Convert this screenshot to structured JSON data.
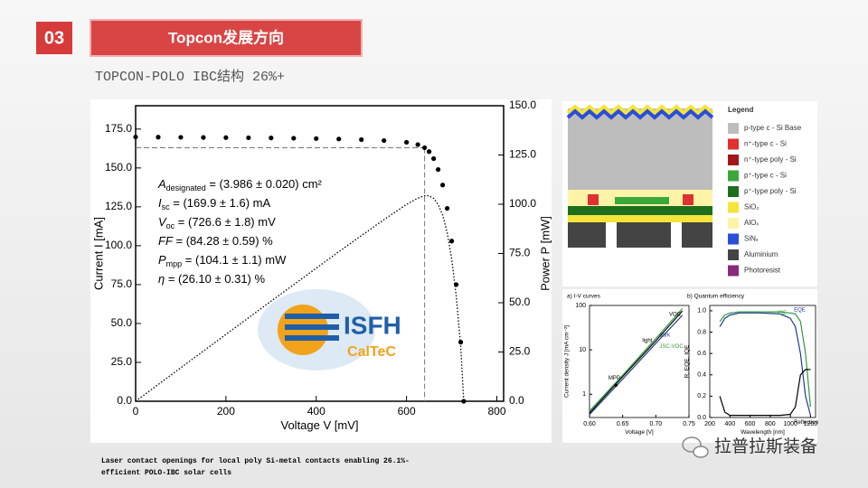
{
  "header": {
    "number": "03",
    "title": "Topcon发展方向",
    "subtitle": "TOPCON-POLO IBC结构 26%+"
  },
  "chart_data": [
    {
      "type": "line",
      "x_label": "Voltage V [mV]",
      "y_label": "Current I [mA]",
      "y2_label": "Power P [mW]",
      "x": [
        0,
        50,
        100,
        150,
        200,
        250,
        300,
        350,
        400,
        450,
        500,
        550,
        600,
        625,
        640,
        650,
        660,
        670,
        680,
        690,
        700,
        710,
        720,
        726.6
      ],
      "series": [
        {
          "name": "Current",
          "color": "#000000",
          "marker": "circle",
          "values": [
            169.9,
            169.8,
            169.7,
            169.6,
            169.5,
            169.4,
            169.3,
            169.1,
            168.9,
            168.6,
            168.2,
            167.6,
            166.5,
            165,
            163,
            160.5,
            156,
            149,
            139,
            124,
            103,
            75,
            38,
            0
          ]
        },
        {
          "name": "Power",
          "color": "#000000",
          "dash": "dotted",
          "axis": "y2",
          "values": [
            0,
            8.49,
            16.97,
            25.44,
            33.9,
            42.35,
            50.79,
            59.19,
            67.56,
            75.87,
            84.1,
            92.18,
            99.9,
            103.13,
            104.32,
            104.33,
            102.96,
            99.83,
            94.52,
            85.56,
            72.1,
            53.25,
            27.36,
            0
          ]
        }
      ],
      "xlim": [
        0,
        815
      ],
      "xticks": [
        0,
        200,
        400,
        600,
        800
      ],
      "ylim": [
        0,
        190
      ],
      "yticks": [
        {
          "value": 0,
          "label": "0.0"
        },
        {
          "value": 25,
          "label": "25.0"
        },
        {
          "value": 50,
          "label": "50.0"
        },
        {
          "value": 75,
          "label": "75.0"
        },
        {
          "value": 100,
          "label": "100.0"
        },
        {
          "value": 125,
          "label": "125.0"
        },
        {
          "value": 150,
          "label": "150.0"
        },
        {
          "value": 175,
          "label": "175.0"
        }
      ],
      "y2lim": [
        0,
        150
      ],
      "y2ticks": [
        {
          "value": 0,
          "label": "0.0"
        },
        {
          "value": 25,
          "label": "25.0"
        },
        {
          "value": 50,
          "label": "50.0"
        },
        {
          "value": 75,
          "label": "75.0"
        },
        {
          "value": 100,
          "label": "100.0"
        },
        {
          "value": 125,
          "label": "125.0"
        },
        {
          "value": 150,
          "label": "150.0"
        }
      ],
      "mpp": {
        "voltage": 640,
        "current": 163
      },
      "annotations": [
        {
          "symbol": "A",
          "sub": "designated",
          "text": " = (3.986 ± 0.020) cm²"
        },
        {
          "symbol": "I",
          "sub": "sc",
          "text": " = (169.9 ± 1.6) mA"
        },
        {
          "symbol": "V",
          "sub": "oc",
          "text": " = (726.6 ± 1.8) mV"
        },
        {
          "symbol": "FF",
          "sub": "",
          "text": " = (84.28 ± 0.59) %"
        },
        {
          "symbol": "P",
          "sub": "mpp",
          "text": " = (104.1 ± 1.1) mW"
        },
        {
          "symbol": "η",
          "sub": "",
          "text": " = (26.10 ± 0.31) %"
        }
      ],
      "logo": {
        "name": "ISFH",
        "sub": "CalTeC"
      }
    },
    {
      "type": "line",
      "title": "a) I-V curves",
      "x_label": "Voltage [V]",
      "y_label": "Current density J [mA cm⁻²]",
      "ylog": true,
      "xlim": [
        0.6,
        0.75
      ],
      "xticks": [
        {
          "value": 0.6,
          "label": "0.60"
        },
        0.65,
        {
          "value": 0.7,
          "label": "0.70"
        },
        0.75
      ],
      "ylim": [
        0.3,
        100
      ],
      "yticks": [
        1,
        10,
        100
      ],
      "series": [
        {
          "name": "dark",
          "color": "#1f3a80",
          "x": [
            0.6,
            0.65,
            0.7,
            0.74
          ],
          "values": [
            0.35,
            2.2,
            14,
            60
          ]
        },
        {
          "name": "light",
          "color": "#000000",
          "x": [
            0.6,
            0.65,
            0.7,
            0.74
          ],
          "values": [
            0.38,
            2.5,
            16,
            75
          ]
        },
        {
          "name": "JSC-VOC",
          "color": "#2e9a3a",
          "x": [
            0.6,
            0.65,
            0.7,
            0.74
          ],
          "values": [
            0.42,
            2.7,
            18,
            85
          ]
        }
      ],
      "point": {
        "label": "MPP",
        "x": 0.64,
        "y": 1.6
      },
      "note": "VOC"
    },
    {
      "type": "line",
      "title": "b) Quantum efficiency",
      "x_label": "Wavelength [nm]",
      "y_label": "R, EQE, IQE",
      "xlim": [
        200,
        1250
      ],
      "xticks": [
        200,
        400,
        600,
        800,
        1000,
        1200
      ],
      "ylim": [
        0,
        1.05
      ],
      "yticks": [
        {
          "value": 0,
          "label": "0.0"
        },
        0.2,
        0.4,
        0.6,
        0.8,
        {
          "value": 1,
          "label": "1.0"
        }
      ],
      "x": [
        300,
        350,
        400,
        500,
        700,
        900,
        1000,
        1050,
        1100,
        1150,
        1200
      ],
      "series": [
        {
          "name": "EQE",
          "color": "#1f3a9a",
          "values": [
            0.85,
            0.93,
            0.96,
            0.98,
            0.98,
            0.97,
            0.93,
            0.85,
            0.6,
            0.2,
            0.02
          ]
        },
        {
          "name": "IQE",
          "color": "#2e9a3a",
          "values": [
            0.9,
            0.96,
            0.98,
            0.99,
            0.99,
            0.99,
            0.98,
            0.97,
            0.9,
            0.6,
            0.1
          ]
        },
        {
          "name": "Reflection",
          "color": "#000000",
          "values": [
            0.2,
            0.05,
            0.02,
            0.02,
            0.02,
            0.02,
            0.03,
            0.1,
            0.4,
            0.45,
            0.45
          ]
        }
      ]
    }
  ],
  "legend_panel": {
    "title": "Legend",
    "items": [
      {
        "label": "p-type c - Si Base",
        "color": "#bdbdbd"
      },
      {
        "label": "n⁺-type c - Si",
        "color": "#e03030"
      },
      {
        "label": "n⁺-type poly - Si",
        "color": "#a01818"
      },
      {
        "label": "p⁺-type c - Si",
        "color": "#3aa83a"
      },
      {
        "label": "p⁺-type poly - Si",
        "color": "#1e6e1e"
      },
      {
        "label": "SiO₂",
        "color": "#f5e43a"
      },
      {
        "label": "AlOₓ",
        "color": "#fff3a8"
      },
      {
        "label": "SiNₓ",
        "color": "#2a4ed8"
      },
      {
        "label": "Aluminium",
        "color": "#444444"
      },
      {
        "label": "Photoresist",
        "color": "#8a2a7a"
      }
    ]
  },
  "caption": [
    "Laser contact openings for local poly Si-metal contacts enabling 26.1%-",
    "efficient POLO-IBC solar cells"
  ],
  "watermark": "拉普拉斯装备"
}
